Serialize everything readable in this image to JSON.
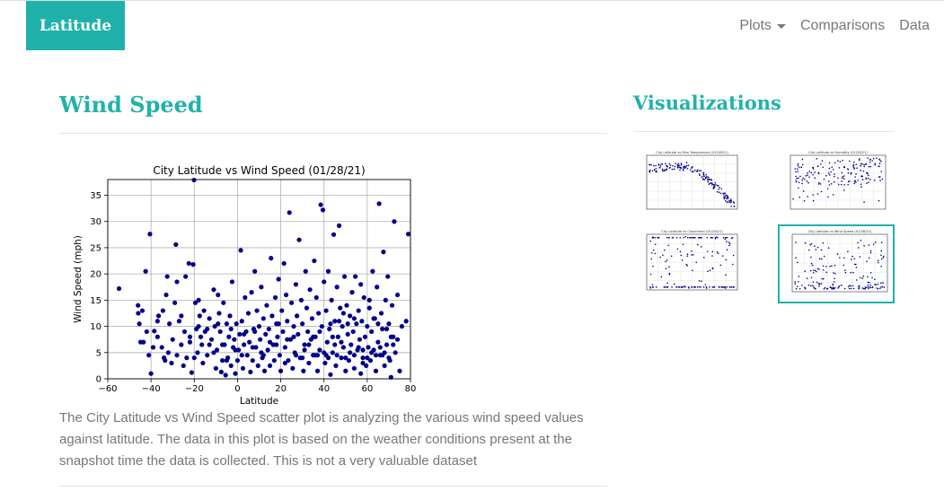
{
  "navbar": {
    "brand": "Latitude",
    "items": [
      {
        "label": "Plots",
        "has_dropdown": true
      },
      {
        "label": "Comparisons",
        "has_dropdown": false
      },
      {
        "label": "Data",
        "has_dropdown": false
      }
    ]
  },
  "main": {
    "heading": "Wind Speed",
    "description": "The City Latitude vs Wind Speed scatter plot is analyzing the various wind speed values against latitude. The data in this plot is based on the weather conditions present at the snapshot time the data is collected. This is not a very valuable dataset"
  },
  "sidebar": {
    "heading": "Visualizations",
    "thumbnails": [
      {
        "title": "City Latitude vs Max Temperature (01/28/21)",
        "selected": false,
        "pattern": "temperature"
      },
      {
        "title": "City Latitude vs Humidity (01/28/21)",
        "selected": false,
        "pattern": "humidity"
      },
      {
        "title": "City Latitude vs Cloudiness (01/28/21)",
        "selected": false,
        "pattern": "cloudiness"
      },
      {
        "title": "City Latitude vs Wind Speed (01/28/21)",
        "selected": true,
        "pattern": "wind"
      }
    ]
  },
  "colors": {
    "accent": "#20b2aa",
    "marker": "#00008b",
    "nav_text": "#777777"
  },
  "chart_data": {
    "type": "scatter",
    "title": "City Latitude vs Wind Speed (01/28/21)",
    "xlabel": "Latitude",
    "ylabel": "Wind Speed (mph)",
    "xlim": [
      -60,
      80
    ],
    "ylim": [
      0,
      38
    ],
    "xticks": [
      -60,
      -40,
      -20,
      0,
      20,
      40,
      60,
      80
    ],
    "yticks": [
      0,
      5,
      10,
      15,
      20,
      25,
      30,
      35
    ],
    "grid": true,
    "points": [
      [
        -54.8,
        17.2
      ],
      [
        -46,
        14
      ],
      [
        -45.9,
        12.5
      ],
      [
        -45.4,
        10.5
      ],
      [
        -44.8,
        7
      ],
      [
        -43.5,
        7
      ],
      [
        -42.5,
        20.5
      ],
      [
        -41,
        4.5
      ],
      [
        -40.5,
        27.6
      ],
      [
        -40,
        1
      ],
      [
        -38.5,
        9.1
      ],
      [
        -37,
        8
      ],
      [
        -36.5,
        12
      ],
      [
        -35,
        6
      ],
      [
        -34.5,
        13
      ],
      [
        -33.5,
        3.5
      ],
      [
        -33,
        16
      ],
      [
        -32.5,
        19.5
      ],
      [
        -32,
        5
      ],
      [
        -31.5,
        10.5
      ],
      [
        -30.5,
        3
      ],
      [
        -30,
        7.5
      ],
      [
        -29,
        14.5
      ],
      [
        -28.5,
        25.6
      ],
      [
        -28,
        18.5
      ],
      [
        -27,
        11
      ],
      [
        -26,
        6.5
      ],
      [
        -25,
        2.5
      ],
      [
        -24.5,
        9
      ],
      [
        -24,
        19.5
      ],
      [
        -23.5,
        4
      ],
      [
        -22.5,
        22
      ],
      [
        -22,
        7
      ],
      [
        -21.2,
        1.2
      ],
      [
        -20.5,
        21.8
      ],
      [
        -20.1,
        37.9
      ],
      [
        -19.5,
        14.5
      ],
      [
        -19,
        9.5
      ],
      [
        -18.5,
        5
      ],
      [
        -18,
        15
      ],
      [
        -17.5,
        12
      ],
      [
        -17,
        8
      ],
      [
        -16.5,
        6.5
      ],
      [
        -16,
        3
      ],
      [
        -15.5,
        13
      ],
      [
        -15,
        9
      ],
      [
        -14,
        4.5
      ],
      [
        -13,
        11.5
      ],
      [
        -12,
        7.5
      ],
      [
        -11,
        17
      ],
      [
        -10.5,
        10
      ],
      [
        -10,
        2
      ],
      [
        -9.5,
        5.5
      ],
      [
        -9,
        16
      ],
      [
        -8.5,
        12.5
      ],
      [
        -8,
        9
      ],
      [
        -7.5,
        1.3
      ],
      [
        -7,
        3.5
      ],
      [
        -6.5,
        14.5
      ],
      [
        -6,
        6.5
      ],
      [
        -5.5,
        0.7
      ],
      [
        -5,
        10.5
      ],
      [
        -4.5,
        4
      ],
      [
        -4,
        8
      ],
      [
        -3.5,
        12
      ],
      [
        -3,
        2.5
      ],
      [
        -2.5,
        18.5
      ],
      [
        -2,
        6
      ],
      [
        -1.5,
        7.5
      ],
      [
        -1,
        1
      ],
      [
        -0.5,
        10.5
      ],
      [
        0,
        3.5
      ],
      [
        0.5,
        5.5
      ],
      [
        1,
        8.5
      ],
      [
        1.5,
        24.5
      ],
      [
        2,
        11
      ],
      [
        2.5,
        2
      ],
      [
        3,
        6.5
      ],
      [
        3.5,
        15.5
      ],
      [
        4,
        9
      ],
      [
        4.5,
        4.5
      ],
      [
        5,
        12.5
      ],
      [
        5.5,
        7
      ],
      [
        6,
        1.3
      ],
      [
        6.5,
        16.5
      ],
      [
        7,
        3.5
      ],
      [
        7.5,
        9.5
      ],
      [
        8,
        20.5
      ],
      [
        8.5,
        6
      ],
      [
        9,
        13
      ],
      [
        9.5,
        2.5
      ],
      [
        10,
        10
      ],
      [
        10.5,
        7.5
      ],
      [
        11,
        17.5
      ],
      [
        11.5,
        4
      ],
      [
        12,
        11.5
      ],
      [
        12.5,
        1.5
      ],
      [
        13,
        8.5
      ],
      [
        13.5,
        14
      ],
      [
        14,
        5.5
      ],
      [
        14.5,
        9.5
      ],
      [
        15,
        2.5
      ],
      [
        15.5,
        23
      ],
      [
        16,
        12
      ],
      [
        16.5,
        6.5
      ],
      [
        17,
        3.5
      ],
      [
        17.5,
        15.5
      ],
      [
        18,
        10.5
      ],
      [
        18.5,
        8
      ],
      [
        19,
        19
      ],
      [
        19.5,
        4.5
      ],
      [
        20,
        1.5
      ],
      [
        20.5,
        13
      ],
      [
        21,
        9
      ],
      [
        21.5,
        22
      ],
      [
        22,
        6
      ],
      [
        22.5,
        16
      ],
      [
        23,
        11
      ],
      [
        23.5,
        3.5
      ],
      [
        24,
        31.7
      ],
      [
        24.5,
        7.5
      ],
      [
        25,
        14.5
      ],
      [
        25.5,
        2
      ],
      [
        26,
        10
      ],
      [
        26.5,
        5
      ],
      [
        27,
        18
      ],
      [
        27.5,
        12
      ],
      [
        28,
        8.5
      ],
      [
        28.5,
        26.5
      ],
      [
        29,
        4
      ],
      [
        29.5,
        15
      ],
      [
        30,
        10.5
      ],
      [
        30.5,
        1.5
      ],
      [
        31,
        6.5
      ],
      [
        31.5,
        20.5
      ],
      [
        32,
        13.5
      ],
      [
        32.5,
        9
      ],
      [
        33,
        3
      ],
      [
        33.5,
        17
      ],
      [
        34,
        7.5
      ],
      [
        34.5,
        11.5
      ],
      [
        35,
        4.5
      ],
      [
        35.5,
        22.5
      ],
      [
        36,
        8
      ],
      [
        36.5,
        15.5
      ],
      [
        37,
        1.5
      ],
      [
        37.5,
        12.5
      ],
      [
        38,
        5.5
      ],
      [
        38.5,
        33.2
      ],
      [
        39,
        10
      ],
      [
        39.5,
        32.2
      ],
      [
        40,
        18.5
      ],
      [
        40.5,
        3
      ],
      [
        41,
        13
      ],
      [
        41.5,
        7
      ],
      [
        42,
        20.5
      ],
      [
        42.5,
        9.5
      ],
      [
        43,
        0.8
      ],
      [
        43.5,
        15
      ],
      [
        44,
        5
      ],
      [
        44.5,
        27.5
      ],
      [
        45,
        11
      ],
      [
        45.5,
        2.5
      ],
      [
        46,
        17.5
      ],
      [
        46.5,
        8
      ],
      [
        47,
        29.2
      ],
      [
        47.5,
        13.5
      ],
      [
        48,
        4
      ],
      [
        48.5,
        10
      ],
      [
        49,
        6
      ],
      [
        49.5,
        19.5
      ],
      [
        50,
        1.5
      ],
      [
        50.5,
        14
      ],
      [
        51,
        8.5
      ],
      [
        51.5,
        3.5
      ],
      [
        52,
        12
      ],
      [
        52.5,
        6.5
      ],
      [
        53,
        16.5
      ],
      [
        53.5,
        9
      ],
      [
        54,
        2
      ],
      [
        54.5,
        19.5
      ],
      [
        55,
        10.5
      ],
      [
        55.5,
        5.5
      ],
      [
        56,
        13
      ],
      [
        56.5,
        7.5
      ],
      [
        57,
        1
      ],
      [
        57.5,
        11
      ],
      [
        58,
        4
      ],
      [
        58.5,
        15.5
      ],
      [
        59,
        8
      ],
      [
        59.5,
        2.5
      ],
      [
        60,
        10
      ],
      [
        60.5,
        6
      ],
      [
        61,
        13.5
      ],
      [
        61.5,
        3.5
      ],
      [
        62,
        9
      ],
      [
        62.5,
        20.5
      ],
      [
        63,
        5.5
      ],
      [
        63.5,
        11.5
      ],
      [
        64,
        1.5
      ],
      [
        64.5,
        17.5
      ],
      [
        65,
        7
      ],
      [
        65.5,
        33.4
      ],
      [
        66,
        4.5
      ],
      [
        66.5,
        12.5
      ],
      [
        67,
        9.5
      ],
      [
        67.5,
        24.2
      ],
      [
        68,
        2.5
      ],
      [
        68.5,
        15
      ],
      [
        69,
        6.5
      ],
      [
        69.5,
        19.5
      ],
      [
        70,
        10.5
      ],
      [
        70.5,
        3.5
      ],
      [
        71,
        0.3
      ],
      [
        71.5,
        14
      ],
      [
        72,
        8
      ],
      [
        72.5,
        30
      ],
      [
        73,
        5
      ],
      [
        74,
        16
      ],
      [
        75,
        1.5
      ],
      [
        76,
        10
      ],
      [
        78,
        11
      ],
      [
        79,
        27.6
      ],
      [
        -44,
        13
      ],
      [
        -39,
        6
      ],
      [
        -26,
        12
      ],
      [
        -20,
        4
      ],
      [
        -14,
        9.5
      ],
      [
        -11,
        5
      ],
      [
        -7,
        6.5
      ],
      [
        -3,
        9.5
      ],
      [
        2,
        4.5
      ],
      [
        8,
        9
      ],
      [
        12,
        4.5
      ],
      [
        18,
        6.5
      ],
      [
        22,
        3
      ],
      [
        26,
        8
      ],
      [
        30,
        4
      ],
      [
        33,
        6.5
      ],
      [
        36,
        4.5
      ],
      [
        38,
        9
      ],
      [
        40,
        5
      ],
      [
        42,
        4
      ],
      [
        44,
        8
      ],
      [
        46,
        4.5
      ],
      [
        48,
        7
      ],
      [
        50,
        4
      ],
      [
        52,
        5
      ],
      [
        54,
        4.5
      ],
      [
        56,
        6
      ],
      [
        58,
        5.5
      ],
      [
        60,
        4
      ],
      [
        62,
        5
      ],
      [
        64,
        4.5
      ],
      [
        66,
        6
      ],
      [
        68,
        5
      ],
      [
        70,
        4
      ],
      [
        72,
        6.5
      ],
      [
        74,
        7.5
      ],
      [
        63,
        11.5
      ],
      [
        61,
        15
      ],
      [
        57,
        18
      ],
      [
        51,
        10.5
      ],
      [
        47,
        11
      ],
      [
        43,
        10.5
      ],
      [
        41,
        4.5
      ],
      [
        37,
        4.5
      ],
      [
        35,
        8
      ],
      [
        31,
        5.5
      ],
      [
        27,
        4.5
      ],
      [
        23,
        7.5
      ],
      [
        19,
        10.5
      ],
      [
        15,
        7
      ],
      [
        11,
        5
      ],
      [
        7,
        6
      ],
      [
        3,
        8.5
      ],
      [
        -1,
        5.5
      ],
      [
        -5,
        3.5
      ],
      [
        -9,
        10.5
      ],
      [
        -13,
        6.5
      ],
      [
        -18,
        10
      ],
      [
        -22,
        8
      ],
      [
        -28,
        4.5
      ],
      [
        -34,
        4
      ],
      [
        -37,
        11
      ],
      [
        -42,
        9
      ],
      [
        65,
        10.5
      ],
      [
        67,
        4.5
      ],
      [
        69,
        9.5
      ],
      [
        71,
        8
      ],
      [
        58,
        3
      ],
      [
        54,
        11.5
      ],
      [
        49,
        12.5
      ],
      [
        45,
        6.5
      ]
    ]
  }
}
